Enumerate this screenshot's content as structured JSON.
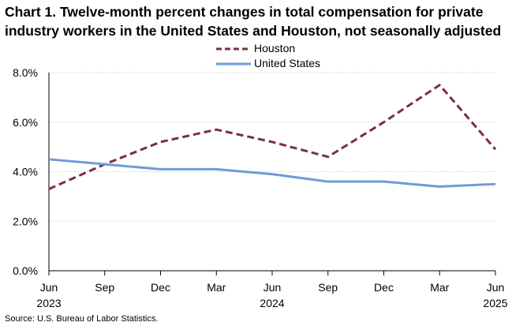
{
  "title_line1": "Chart 1. Twelve-month percent changes in total compensation for private",
  "title_line2": "industry workers in the United States and Houston, not seasonally adjusted",
  "source": "Source: U.S. Bureau of Labor Statistics.",
  "chart_data": {
    "type": "line",
    "categories": [
      "Jun",
      "Sep",
      "Dec",
      "Mar",
      "Jun",
      "Sep",
      "Dec",
      "Mar",
      "Jun"
    ],
    "year_labels": [
      "2023",
      "",
      "",
      "",
      "2024",
      "",
      "",
      "",
      "2025"
    ],
    "y_ticks": [
      "0.0%",
      "2.0%",
      "4.0%",
      "6.0%",
      "8.0%"
    ],
    "ylim": [
      0,
      8
    ],
    "series": [
      {
        "name": "Houston",
        "color": "#7b2c4a",
        "dash": true,
        "values": [
          3.3,
          4.3,
          5.2,
          5.7,
          5.2,
          4.6,
          6.0,
          7.5,
          4.9
        ]
      },
      {
        "name": "United States",
        "color": "#6f9bd8",
        "dash": false,
        "values": [
          4.5,
          4.3,
          4.1,
          4.1,
          3.9,
          3.6,
          3.6,
          3.4,
          3.5
        ]
      }
    ],
    "legend_position": "top-center",
    "grid": true
  }
}
